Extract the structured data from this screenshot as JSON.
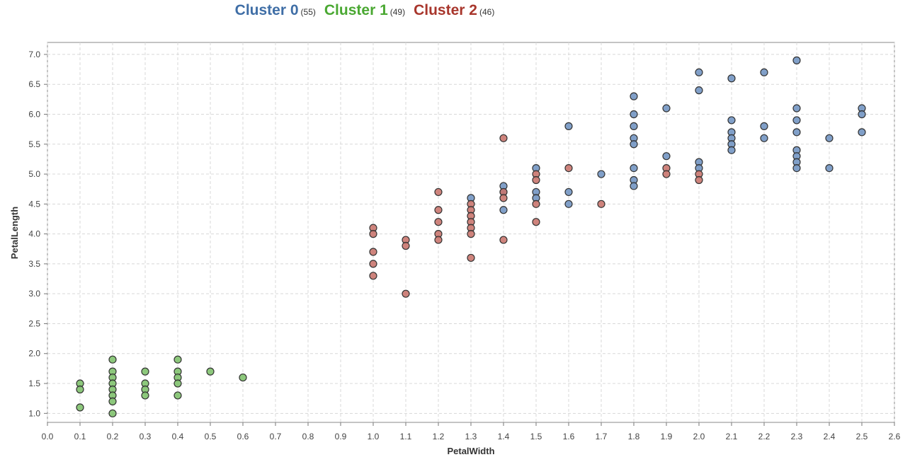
{
  "chart_data": {
    "type": "scatter",
    "title": "",
    "xlabel": "PetalWidth",
    "ylabel": "PetalLength",
    "xlim": [
      0.0,
      2.6
    ],
    "ylim": [
      0.85,
      7.2
    ],
    "x_ticks": [
      "0.0",
      "0.1",
      "0.2",
      "0.3",
      "0.4",
      "0.5",
      "0.6",
      "0.7",
      "0.8",
      "0.9",
      "1.0",
      "1.1",
      "1.2",
      "1.3",
      "1.4",
      "1.5",
      "1.6",
      "1.7",
      "1.8",
      "1.9",
      "2.0",
      "2.1",
      "2.2",
      "2.3",
      "2.4",
      "2.5",
      "2.6"
    ],
    "y_ticks": [
      "1.0",
      "1.5",
      "2.0",
      "2.5",
      "3.0",
      "3.5",
      "4.0",
      "4.5",
      "5.0",
      "5.5",
      "6.0",
      "6.5",
      "7.0"
    ],
    "grid": true,
    "legend_position": "top",
    "series": [
      {
        "name": "Cluster 0",
        "count": "(55)",
        "color": "#3f6ea6",
        "fill": "#6f93c2",
        "points": [
          [
            1.3,
            4.6
          ],
          [
            1.4,
            4.8
          ],
          [
            1.4,
            4.7
          ],
          [
            1.4,
            4.4
          ],
          [
            1.5,
            5.1
          ],
          [
            1.5,
            4.7
          ],
          [
            1.5,
            4.6
          ],
          [
            1.6,
            5.8
          ],
          [
            1.6,
            4.7
          ],
          [
            1.6,
            4.5
          ],
          [
            1.7,
            5.0
          ],
          [
            1.8,
            6.3
          ],
          [
            1.8,
            6.0
          ],
          [
            1.8,
            5.8
          ],
          [
            1.8,
            5.6
          ],
          [
            1.8,
            5.5
          ],
          [
            1.8,
            5.1
          ],
          [
            1.8,
            4.9
          ],
          [
            1.8,
            4.8
          ],
          [
            1.9,
            6.1
          ],
          [
            1.9,
            5.3
          ],
          [
            2.0,
            6.7
          ],
          [
            2.0,
            6.4
          ],
          [
            2.0,
            5.2
          ],
          [
            2.0,
            5.1
          ],
          [
            2.1,
            6.6
          ],
          [
            2.1,
            5.9
          ],
          [
            2.1,
            5.7
          ],
          [
            2.1,
            5.6
          ],
          [
            2.1,
            5.5
          ],
          [
            2.1,
            5.4
          ],
          [
            2.2,
            6.7
          ],
          [
            2.2,
            5.8
          ],
          [
            2.2,
            5.6
          ],
          [
            2.3,
            6.9
          ],
          [
            2.3,
            6.1
          ],
          [
            2.3,
            5.9
          ],
          [
            2.3,
            5.7
          ],
          [
            2.3,
            5.4
          ],
          [
            2.3,
            5.3
          ],
          [
            2.3,
            5.2
          ],
          [
            2.3,
            5.1
          ],
          [
            2.4,
            5.6
          ],
          [
            2.4,
            5.1
          ],
          [
            2.5,
            6.1
          ],
          [
            2.5,
            6.0
          ],
          [
            2.5,
            5.7
          ]
        ]
      },
      {
        "name": "Cluster 1",
        "count": "(49)",
        "color": "#4aa832",
        "fill": "#7dc06a",
        "points": [
          [
            0.1,
            1.5
          ],
          [
            0.1,
            1.4
          ],
          [
            0.1,
            1.1
          ],
          [
            0.2,
            1.9
          ],
          [
            0.2,
            1.7
          ],
          [
            0.2,
            1.6
          ],
          [
            0.2,
            1.5
          ],
          [
            0.2,
            1.4
          ],
          [
            0.2,
            1.3
          ],
          [
            0.2,
            1.2
          ],
          [
            0.2,
            1.0
          ],
          [
            0.3,
            1.7
          ],
          [
            0.3,
            1.5
          ],
          [
            0.3,
            1.4
          ],
          [
            0.3,
            1.3
          ],
          [
            0.4,
            1.9
          ],
          [
            0.4,
            1.7
          ],
          [
            0.4,
            1.6
          ],
          [
            0.4,
            1.5
          ],
          [
            0.4,
            1.3
          ],
          [
            0.5,
            1.7
          ],
          [
            0.6,
            1.6
          ]
        ]
      },
      {
        "name": "Cluster 2",
        "count": "(46)",
        "color": "#a8362c",
        "fill": "#c8736b",
        "points": [
          [
            1.0,
            4.1
          ],
          [
            1.0,
            4.0
          ],
          [
            1.0,
            3.7
          ],
          [
            1.0,
            3.5
          ],
          [
            1.0,
            3.3
          ],
          [
            1.1,
            3.9
          ],
          [
            1.1,
            3.8
          ],
          [
            1.1,
            3.0
          ],
          [
            1.2,
            4.7
          ],
          [
            1.2,
            4.4
          ],
          [
            1.2,
            4.2
          ],
          [
            1.2,
            4.0
          ],
          [
            1.2,
            3.9
          ],
          [
            1.3,
            4.5
          ],
          [
            1.3,
            4.4
          ],
          [
            1.3,
            4.3
          ],
          [
            1.3,
            4.2
          ],
          [
            1.3,
            4.1
          ],
          [
            1.3,
            4.0
          ],
          [
            1.3,
            3.6
          ],
          [
            1.4,
            5.6
          ],
          [
            1.4,
            4.7
          ],
          [
            1.4,
            4.6
          ],
          [
            1.4,
            3.9
          ],
          [
            1.5,
            5.0
          ],
          [
            1.5,
            4.9
          ],
          [
            1.5,
            4.5
          ],
          [
            1.5,
            4.2
          ],
          [
            1.6,
            5.1
          ],
          [
            1.7,
            4.5
          ],
          [
            1.9,
            5.1
          ],
          [
            1.9,
            5.0
          ],
          [
            2.0,
            5.0
          ],
          [
            2.0,
            4.9
          ]
        ]
      }
    ]
  }
}
